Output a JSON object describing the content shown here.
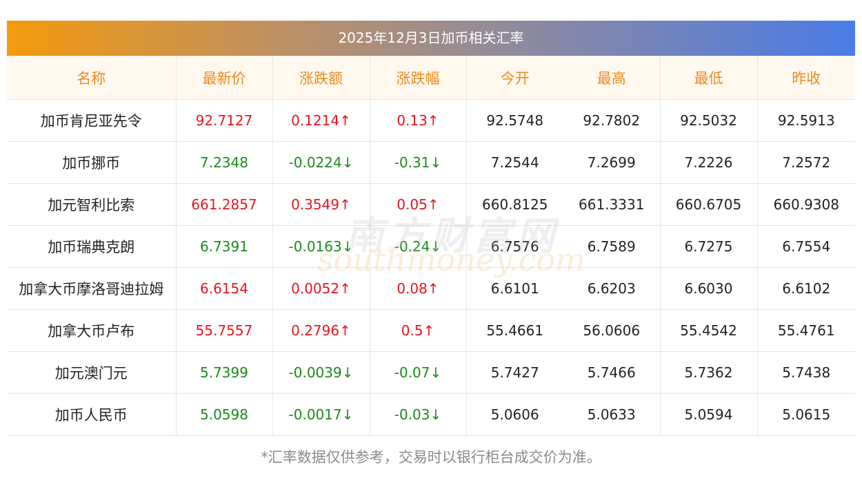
{
  "title": "2025年12月3日加币相关汇率",
  "headers": [
    "名称",
    "最新价",
    "涨跌额",
    "涨跌幅",
    "今开",
    "最高",
    "最低",
    "昨收"
  ],
  "rows": [
    {
      "name": "加币肯尼亚先令",
      "latest": "92.7127",
      "change": "0.1214↑",
      "pct": "0.13↑",
      "open": "92.5748",
      "high": "92.7802",
      "low": "92.5032",
      "prev": "92.5913",
      "dir": "up"
    },
    {
      "name": "加币挪币",
      "latest": "7.2348",
      "change": "-0.0224↓",
      "pct": "-0.31↓",
      "open": "7.2544",
      "high": "7.2699",
      "low": "7.2226",
      "prev": "7.2572",
      "dir": "down"
    },
    {
      "name": "加元智利比索",
      "latest": "661.2857",
      "change": "0.3549↑",
      "pct": "0.05↑",
      "open": "660.8125",
      "high": "661.3331",
      "low": "660.6705",
      "prev": "660.9308",
      "dir": "up"
    },
    {
      "name": "加币瑞典克朗",
      "latest": "6.7391",
      "change": "-0.0163↓",
      "pct": "-0.24↓",
      "open": "6.7576",
      "high": "6.7589",
      "low": "6.7275",
      "prev": "6.7554",
      "dir": "down"
    },
    {
      "name": "加拿大币摩洛哥迪拉姆",
      "latest": "6.6154",
      "change": "0.0052↑",
      "pct": "0.08↑",
      "open": "6.6101",
      "high": "6.6203",
      "low": "6.6030",
      "prev": "6.6102",
      "dir": "up"
    },
    {
      "name": "加拿大币卢布",
      "latest": "55.7557",
      "change": "0.2796↑",
      "pct": "0.5↑",
      "open": "55.4661",
      "high": "56.0606",
      "low": "55.4542",
      "prev": "55.4761",
      "dir": "up"
    },
    {
      "name": "加元澳门元",
      "latest": "5.7399",
      "change": "-0.0039↓",
      "pct": "-0.07↓",
      "open": "5.7427",
      "high": "5.7466",
      "low": "5.7362",
      "prev": "5.7438",
      "dir": "down"
    },
    {
      "name": "加币人民币",
      "latest": "5.0598",
      "change": "-0.0017↓",
      "pct": "-0.03↓",
      "open": "5.0606",
      "high": "5.0633",
      "low": "5.0594",
      "prev": "5.0615",
      "dir": "down"
    }
  ],
  "footer": "*汇率数据仅供参考，交易时以银行柜台成交价为准。",
  "watermark": {
    "cn": "南方财富网",
    "en": "southmoney.com"
  },
  "colors": {
    "up": "#e8141c",
    "down": "#1a8a1a",
    "header_text": "#f08a1c"
  }
}
